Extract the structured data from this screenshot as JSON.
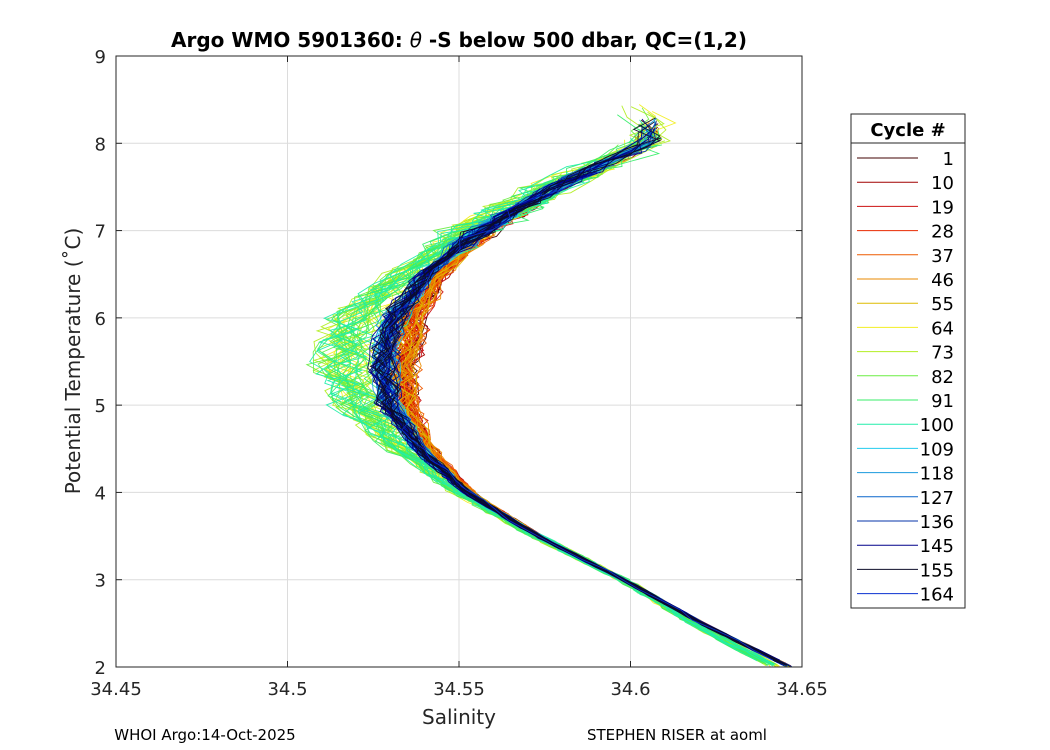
{
  "chart_data": {
    "type": "line",
    "title_prefix": "Argo WMO 5901360: ",
    "title_theta": "θ",
    "title_suffix": "-S below 500 dbar,  QC=(1,2)",
    "xlabel": "Salinity",
    "ylabel": "Potential Temperature (˚C)",
    "xlim": [
      34.45,
      34.65
    ],
    "ylim": [
      2,
      9
    ],
    "x_ticks": [
      "34.45",
      "34.5",
      "34.55",
      "34.6",
      "34.65"
    ],
    "y_ticks": [
      "2",
      "3",
      "4",
      "5",
      "6",
      "7",
      "8",
      "9"
    ],
    "grid": true,
    "legend_title": "Cycle #",
    "legend_position": "right",
    "series": [
      {
        "name": "1",
        "color": "#410000"
      },
      {
        "name": "10",
        "color": "#a10000"
      },
      {
        "name": "19",
        "color": "#cc1010"
      },
      {
        "name": "28",
        "color": "#e82a00"
      },
      {
        "name": "37",
        "color": "#ee5a00"
      },
      {
        "name": "46",
        "color": "#ea8a00"
      },
      {
        "name": "55",
        "color": "#ddbb00"
      },
      {
        "name": "64",
        "color": "#f2ee22"
      },
      {
        "name": "73",
        "color": "#b2ee22"
      },
      {
        "name": "82",
        "color": "#6cee44"
      },
      {
        "name": "91",
        "color": "#38ee6a"
      },
      {
        "name": "100",
        "color": "#22eeaa"
      },
      {
        "name": "109",
        "color": "#22ccee"
      },
      {
        "name": "118",
        "color": "#1a99dd"
      },
      {
        "name": "127",
        "color": "#0a66cc"
      },
      {
        "name": "136",
        "color": "#0633aa"
      },
      {
        "name": "145",
        "color": "#00008a"
      },
      {
        "name": "155",
        "color": "#0d0d2a"
      },
      {
        "name": "164",
        "color": "#0a30d0"
      }
    ],
    "profile_shape": {
      "description_points_T": [
        2.0,
        2.5,
        3.0,
        3.5,
        4.0,
        4.5,
        5.0,
        5.5,
        6.0,
        6.5,
        7.0,
        7.5,
        8.0
      ],
      "description_points_S": [
        34.645,
        34.62,
        34.598,
        34.573,
        34.552,
        34.538,
        34.529,
        34.527,
        34.53,
        34.54,
        34.556,
        34.578,
        34.605
      ]
    },
    "footer_left": "WHOI Argo:14-Oct-2025",
    "footer_right": "STEPHEN RISER at aoml"
  }
}
